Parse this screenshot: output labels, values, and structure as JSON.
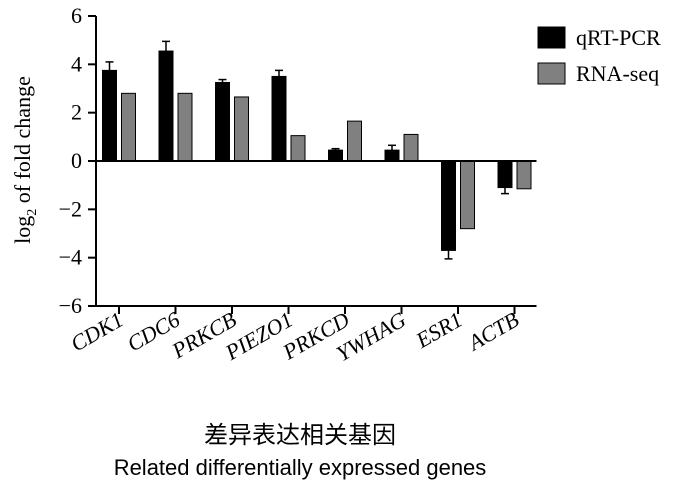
{
  "chart_data": {
    "type": "bar",
    "categories": [
      "CDK1",
      "CDC6",
      "PRKCB",
      "PIEZO1",
      "PRKCD",
      "YWHAG",
      "ESR1",
      "ACTB"
    ],
    "series": [
      {
        "name": "qRT-PCR",
        "color": "#000000",
        "values": [
          3.75,
          4.55,
          3.25,
          3.5,
          0.45,
          0.45,
          -3.7,
          -1.1
        ],
        "errors": [
          0.35,
          0.4,
          0.12,
          0.25,
          0.06,
          0.2,
          0.35,
          0.25
        ]
      },
      {
        "name": "RNA-seq",
        "color": "#808080",
        "values": [
          2.8,
          2.8,
          2.65,
          1.05,
          1.65,
          1.1,
          -2.8,
          -1.15
        ],
        "errors": [
          0,
          0,
          0,
          0,
          0,
          0,
          0,
          0
        ]
      }
    ],
    "ylabel": {
      "main": "log",
      "sub": "2",
      "rest": " of fold change"
    },
    "xlabel_zh": "差异表达相关基因",
    "xlabel_en": "Related differentially expressed genes",
    "ylim": [
      -6,
      6
    ],
    "yticks": [
      "6",
      "4",
      "2",
      "0",
      "−2",
      "−4",
      "−6"
    ],
    "ytick_values": [
      6,
      4,
      2,
      0,
      -2,
      -4,
      -6
    ],
    "grid": false,
    "legend_position": "top-right"
  }
}
